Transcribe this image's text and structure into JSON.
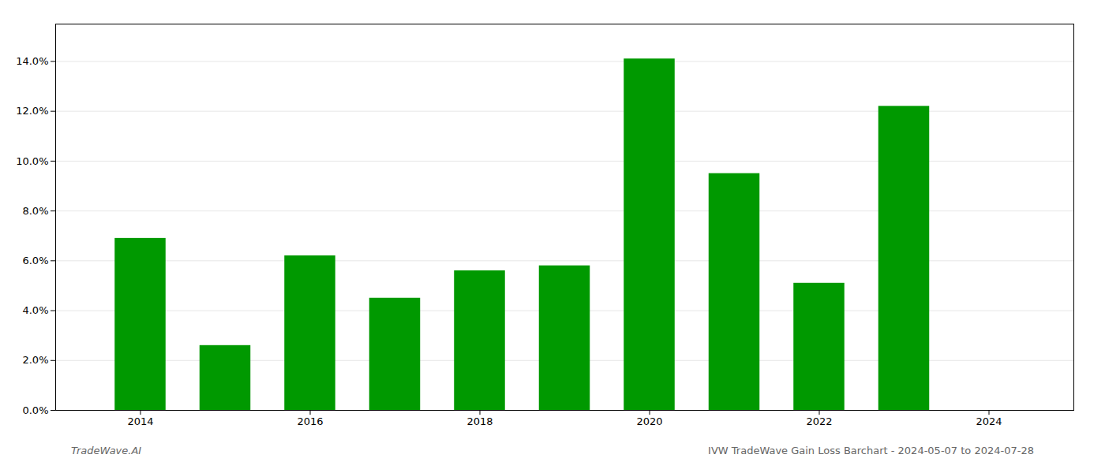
{
  "chart_data": {
    "type": "bar",
    "x": [
      2014,
      2015,
      2016,
      2017,
      2018,
      2019,
      2020,
      2021,
      2022,
      2023
    ],
    "values": [
      0.069,
      0.026,
      0.062,
      0.045,
      0.056,
      0.058,
      0.141,
      0.095,
      0.051,
      0.122
    ],
    "color": "#009900",
    "xlim": [
      2013.0,
      2025.0
    ],
    "xticks": [
      2014,
      2016,
      2018,
      2020,
      2022,
      2024
    ],
    "ylim": [
      0,
      0.155
    ],
    "yticks": [
      {
        "value": 0.0,
        "label": "0.0%"
      },
      {
        "value": 0.02,
        "label": "2.0%"
      },
      {
        "value": 0.04,
        "label": "4.0%"
      },
      {
        "value": 0.06,
        "label": "6.0%"
      },
      {
        "value": 0.08,
        "label": "8.0%"
      },
      {
        "value": 0.1,
        "label": "10.0%"
      },
      {
        "value": 0.12,
        "label": "12.0%"
      },
      {
        "value": 0.14,
        "label": "14.0%"
      }
    ],
    "grid": true,
    "annotations": [
      "TradeWave.AI",
      "IVW TradeWave Gain Loss Barchart - 2024-05-07 to 2024-07-28"
    ]
  }
}
